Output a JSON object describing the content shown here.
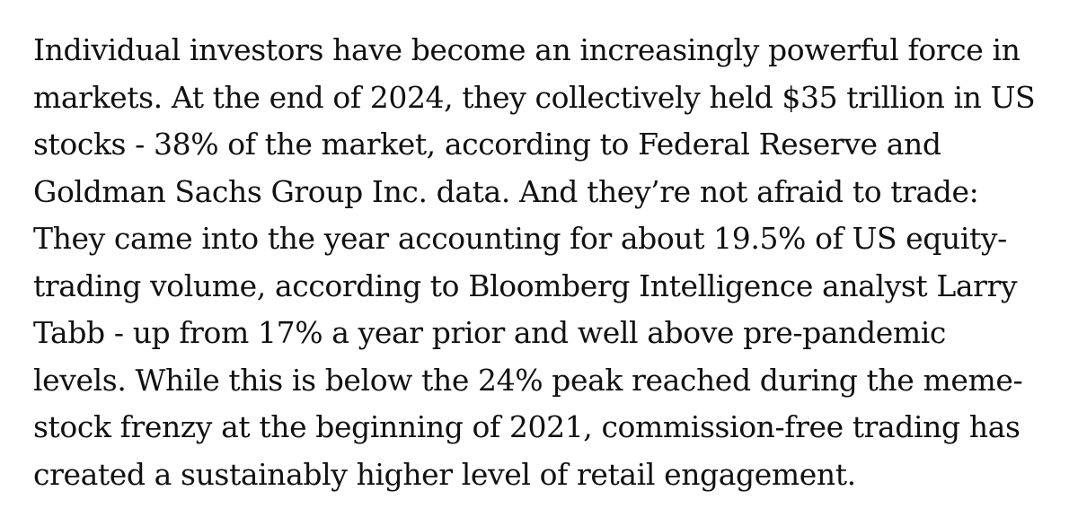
{
  "article": {
    "paragraph_lines": [
      "Individual investors have become an increasingly powerful force in",
      "markets. At the end of 2024, they collectively held $35 trillion in US",
      "stocks - 38% of the market, according to Federal Reserve and",
      "Goldman Sachs Group Inc. data. And they’re not afraid to trade:",
      "They came into the year accounting for about 19.5% of US equity-",
      "trading volume, according to Bloomberg Intelligence analyst Larry",
      "Tabb - up from 17% a year prior and well above pre-pandemic",
      "levels. While this is below the 24% peak reached during the meme-",
      "stock frenzy at the beginning of 2021, commission-free trading has",
      "created a sustainably higher level of retail engagement."
    ]
  }
}
